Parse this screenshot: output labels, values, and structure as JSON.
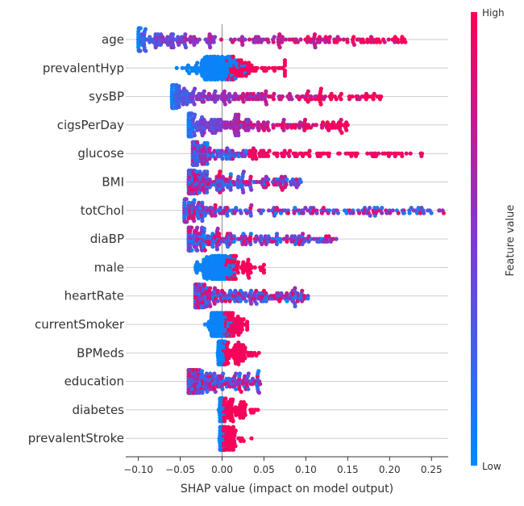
{
  "chart_data": {
    "type": "scatter",
    "subtype": "shap-beeswarm",
    "title": "",
    "xlabel": "SHAP value (impact on model output)",
    "ylabel": "",
    "xlim": [
      -0.115,
      0.27
    ],
    "xticks": [
      {
        "v": -0.1,
        "label": "−0.10"
      },
      {
        "v": -0.05,
        "label": "−0.05"
      },
      {
        "v": 0.0,
        "label": "0.00"
      },
      {
        "v": 0.05,
        "label": "0.05"
      },
      {
        "v": 0.1,
        "label": "0.10"
      },
      {
        "v": 0.15,
        "label": "0.15"
      },
      {
        "v": 0.2,
        "label": "0.20"
      },
      {
        "v": 0.25,
        "label": "0.25"
      }
    ],
    "grid": "horizontal row lines per feature",
    "zero_line": 0,
    "colorbar": {
      "title": "Feature value",
      "high_label": "High",
      "low_label": "Low",
      "low_color": "#008afb",
      "mid_color": "#7f3ad0",
      "high_color": "#ff0052"
    },
    "features": [
      {
        "name": "age",
        "min": -0.1,
        "max": 0.22,
        "pattern": "low-to-high"
      },
      {
        "name": "prevalentHyp",
        "min": -0.055,
        "max": 0.075,
        "pattern": "binary-high-right"
      },
      {
        "name": "sysBP",
        "min": -0.06,
        "max": 0.19,
        "pattern": "low-to-high"
      },
      {
        "name": "cigsPerDay",
        "min": -0.04,
        "max": 0.15,
        "pattern": "low-to-high"
      },
      {
        "name": "glucose",
        "min": -0.035,
        "max": 0.24,
        "pattern": "mixed-high-right"
      },
      {
        "name": "BMI",
        "min": -0.04,
        "max": 0.095,
        "pattern": "mixed"
      },
      {
        "name": "totChol",
        "min": -0.045,
        "max": 0.265,
        "pattern": "mixed"
      },
      {
        "name": "diaBP",
        "min": -0.04,
        "max": 0.137,
        "pattern": "mixed"
      },
      {
        "name": "male",
        "min": -0.042,
        "max": 0.05,
        "pattern": "binary-high-right"
      },
      {
        "name": "heartRate",
        "min": -0.032,
        "max": 0.105,
        "pattern": "mixed"
      },
      {
        "name": "currentSmoker",
        "min": -0.025,
        "max": 0.03,
        "pattern": "binary-high-right"
      },
      {
        "name": "BPMeds",
        "min": -0.008,
        "max": 0.087,
        "pattern": "binary-high-right"
      },
      {
        "name": "education",
        "min": -0.04,
        "max": 0.046,
        "pattern": "mixed"
      },
      {
        "name": "diabetes",
        "min": -0.004,
        "max": 0.076,
        "pattern": "binary-high-right"
      },
      {
        "name": "prevalentStroke",
        "min": -0.004,
        "max": 0.038,
        "pattern": "binary-high-right"
      }
    ]
  }
}
